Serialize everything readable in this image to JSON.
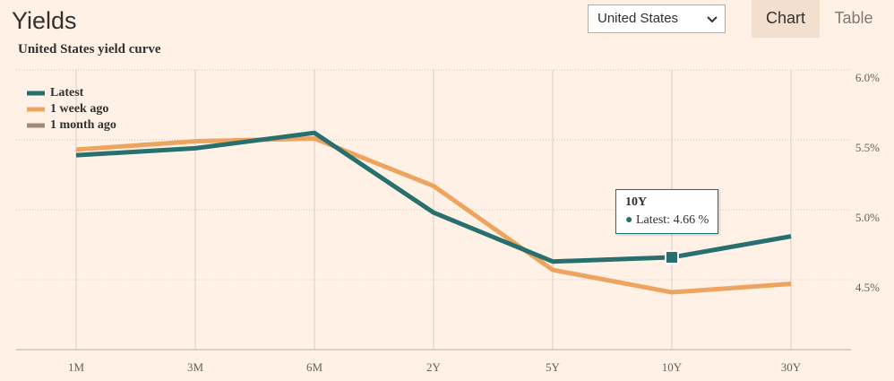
{
  "header": {
    "title": "Yields",
    "select": "United States",
    "tabs": [
      "Chart",
      "Table"
    ],
    "active_tab": 0
  },
  "chart_data": {
    "type": "line",
    "title": "United States yield curve",
    "categories": [
      "1M",
      "3M",
      "6M",
      "2Y",
      "5Y",
      "10Y",
      "30Y"
    ],
    "series": [
      {
        "name": "Latest",
        "color": "#28706f",
        "values": [
          5.39,
          5.44,
          5.55,
          4.98,
          4.63,
          4.66,
          4.81
        ]
      },
      {
        "name": "1 week ago",
        "color": "#eda45e",
        "values": [
          5.43,
          5.49,
          5.51,
          5.17,
          4.57,
          4.41,
          4.47
        ]
      },
      {
        "name": "1 month ago",
        "color": "#a08b76",
        "values": [
          null,
          null,
          null,
          null,
          null,
          null,
          null
        ]
      }
    ],
    "ylim": [
      4.0,
      6.0
    ],
    "yticks": [
      {
        "value": 4.5,
        "label": "4.5%"
      },
      {
        "value": 5.0,
        "label": "5.0%"
      },
      {
        "value": 5.5,
        "label": "5.5%"
      },
      {
        "value": 6.0,
        "label": "6.0%"
      }
    ],
    "grid": true,
    "legend": "top-left",
    "tooltip": {
      "category": 5,
      "series": 0,
      "title": "10Y",
      "text": "Latest: 4.66 %"
    }
  }
}
